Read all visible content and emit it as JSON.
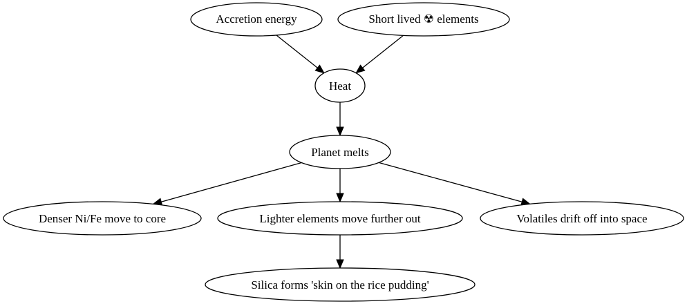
{
  "diagram": {
    "nodes": {
      "accretion": {
        "label": "Accretion energy"
      },
      "short_lived": {
        "label": "Short lived ☢ elements"
      },
      "heat": {
        "label": "Heat"
      },
      "planet_melts": {
        "label": "Planet melts"
      },
      "denser": {
        "label": "Denser Ni/Fe move to core"
      },
      "lighter": {
        "label": "Lighter elements move further out"
      },
      "volatiles": {
        "label": "Volatiles drift off into space"
      },
      "silica": {
        "label": "Silica forms 'skin on the rice pudding'"
      }
    },
    "edges": [
      {
        "from": "accretion",
        "to": "heat"
      },
      {
        "from": "short_lived",
        "to": "heat"
      },
      {
        "from": "heat",
        "to": "planet_melts"
      },
      {
        "from": "planet_melts",
        "to": "denser"
      },
      {
        "from": "planet_melts",
        "to": "lighter"
      },
      {
        "from": "planet_melts",
        "to": "volatiles"
      },
      {
        "from": "lighter",
        "to": "silica"
      }
    ]
  }
}
